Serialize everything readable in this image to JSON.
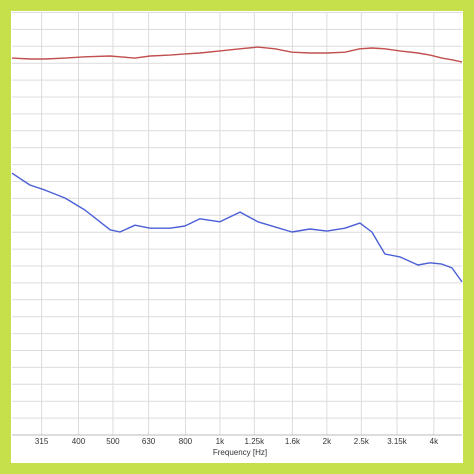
{
  "chart_data": {
    "type": "line",
    "xlabel": "Frequency [Hz]",
    "xscale": "log",
    "x": [
      260,
      292,
      322,
      367,
      417,
      491,
      523,
      577,
      636,
      724,
      797,
      879,
      1000,
      1139,
      1279,
      1429,
      1595,
      1792,
      2001,
      2248,
      2477,
      2677,
      2913,
      3210,
      3606,
      3900,
      4215,
      4496,
      4800
    ],
    "series": [
      {
        "color": "#c0504d",
        "values": [
          89.1,
          88.9,
          88.9,
          89.1,
          89.4,
          89.6,
          89.4,
          89.1,
          89.6,
          89.8,
          90.1,
          90.3,
          90.8,
          91.3,
          91.7,
          91.3,
          90.5,
          90.3,
          90.3,
          90.5,
          91.3,
          91.5,
          91.3,
          90.8,
          90.3,
          89.8,
          89.1,
          88.7,
          88.2
        ]
      },
      {
        "color": "#4a5fd6",
        "values": [
          61.9,
          59.1,
          57.9,
          56.0,
          53.2,
          48.5,
          48.0,
          49.6,
          48.9,
          48.9,
          49.4,
          51.1,
          50.4,
          52.7,
          50.4,
          49.2,
          48.0,
          48.7,
          48.2,
          48.9,
          50.1,
          48.0,
          42.8,
          42.1,
          40.2,
          40.7,
          40.4,
          39.5,
          36.2
        ]
      }
    ],
    "xlim": [
      260,
      4800
    ],
    "ylim": [
      0,
      100
    ],
    "xticks": [
      315,
      400,
      500,
      630,
      800,
      {
        "value": 1000,
        "label": "1k"
      },
      {
        "value": 1250,
        "label": "1.25k"
      },
      {
        "value": 1600,
        "label": "1.6k"
      },
      {
        "value": 2000,
        "label": "2k"
      },
      {
        "value": 2500,
        "label": "2.5k"
      },
      {
        "value": 3150,
        "label": "3.15k"
      },
      {
        "value": 4000,
        "label": "4k"
      }
    ],
    "grid": true
  }
}
